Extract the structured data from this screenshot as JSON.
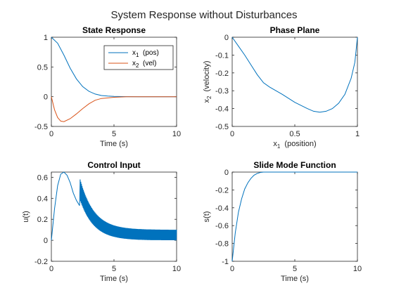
{
  "figure": {
    "title": "System Response without Disturbances"
  },
  "chart_data": [
    {
      "type": "line",
      "title": "State Response",
      "xlabel": "Time (s)",
      "ylabel": "",
      "xlim": [
        0,
        10
      ],
      "ylim": [
        -0.5,
        1
      ],
      "xticks": [
        0,
        5,
        10
      ],
      "yticks": [
        -0.5,
        0,
        0.5,
        1
      ],
      "legend": "top-right",
      "grid": false,
      "series": [
        {
          "name": "x1 (pos)",
          "legend_base": "x",
          "legend_sub": "1",
          "legend_suffix": "(pos)",
          "color": "#0072BD",
          "x": [
            0,
            0.5,
            1,
            1.5,
            2,
            2.5,
            3,
            3.5,
            4,
            4.5,
            5,
            6,
            7,
            8,
            9,
            10
          ],
          "y": [
            1,
            0.9,
            0.7,
            0.48,
            0.3,
            0.17,
            0.09,
            0.045,
            0.02,
            0.01,
            0.005,
            0.001,
            0,
            0,
            0,
            0
          ]
        },
        {
          "name": "x2 (vel)",
          "legend_base": "x",
          "legend_sub": "2",
          "legend_suffix": "(vel)",
          "color": "#D95319",
          "x": [
            0,
            0.25,
            0.5,
            0.75,
            1,
            1.5,
            2,
            2.5,
            3,
            3.5,
            4,
            5,
            6,
            7,
            8,
            9,
            10
          ],
          "y": [
            0,
            -0.22,
            -0.35,
            -0.41,
            -0.42,
            -0.37,
            -0.29,
            -0.2,
            -0.12,
            -0.06,
            -0.03,
            -0.01,
            0,
            0,
            0,
            0,
            0
          ]
        }
      ]
    },
    {
      "type": "line",
      "title": "Phase Plane",
      "xlabel_base": "x",
      "xlabel_sub": "1",
      "xlabel_suffix": "(position)",
      "ylabel_base": "x",
      "ylabel_sub": "2",
      "ylabel_suffix": "(velocity)",
      "xlim": [
        0,
        1
      ],
      "ylim": [
        -0.5,
        0
      ],
      "xticks": [
        0,
        0.5,
        1
      ],
      "yticks": [
        -0.5,
        -0.4,
        -0.3,
        -0.2,
        -0.1,
        0
      ],
      "grid": false,
      "series": [
        {
          "color": "#0072BD",
          "x": [
            0,
            0.05,
            0.1,
            0.15,
            0.2,
            0.25,
            0.3,
            0.4,
            0.5,
            0.6,
            0.65,
            0.7,
            0.75,
            0.8,
            0.85,
            0.9,
            0.95,
            0.98,
            1
          ],
          "y": [
            0,
            -0.05,
            -0.1,
            -0.155,
            -0.21,
            -0.255,
            -0.28,
            -0.32,
            -0.365,
            -0.4,
            -0.415,
            -0.42,
            -0.415,
            -0.4,
            -0.37,
            -0.32,
            -0.23,
            -0.14,
            0
          ]
        }
      ]
    },
    {
      "type": "line",
      "title": "Control Input",
      "xlabel": "Time (s)",
      "ylabel": "u(t)",
      "xlim": [
        0,
        10
      ],
      "ylim": [
        -0.2,
        0.65
      ],
      "xticks": [
        0,
        5,
        10
      ],
      "yticks": [
        -0.2,
        0,
        0.2,
        0.4,
        0.6
      ],
      "grid": false,
      "series": [
        {
          "color": "#0072BD",
          "x": [
            0,
            0.25,
            0.5,
            0.75,
            1,
            1.25,
            1.5,
            1.75,
            2,
            2.25
          ],
          "y": [
            0,
            0.3,
            0.52,
            0.63,
            0.65,
            0.62,
            0.55,
            0.45,
            0.38,
            0.33
          ]
        }
      ],
      "chatter": {
        "t_start": 2.3,
        "t_end": 10,
        "upper_start": 0.58,
        "upper_end": 0.1,
        "lower_start": 0.38,
        "lower_end": 0,
        "decay_rate": 0.9
      }
    },
    {
      "type": "line",
      "title": "Slide Mode Function",
      "xlabel": "Time (s)",
      "ylabel": "s(t)",
      "xlim": [
        0,
        10
      ],
      "ylim": [
        -1,
        0
      ],
      "xticks": [
        0,
        5,
        10
      ],
      "yticks": [
        -1,
        -0.8,
        -0.6,
        -0.4,
        -0.2,
        0
      ],
      "grid": false,
      "series": [
        {
          "color": "#0072BD",
          "x": [
            0,
            0.25,
            0.5,
            0.75,
            1,
            1.25,
            1.5,
            1.75,
            2,
            2.25,
            2.5,
            3,
            4,
            5,
            6,
            7,
            8,
            9,
            10
          ],
          "y": [
            -1,
            -0.68,
            -0.45,
            -0.3,
            -0.19,
            -0.12,
            -0.07,
            -0.035,
            -0.015,
            -0.004,
            0,
            0,
            0,
            0,
            0,
            0,
            0,
            0,
            0
          ]
        }
      ]
    }
  ]
}
